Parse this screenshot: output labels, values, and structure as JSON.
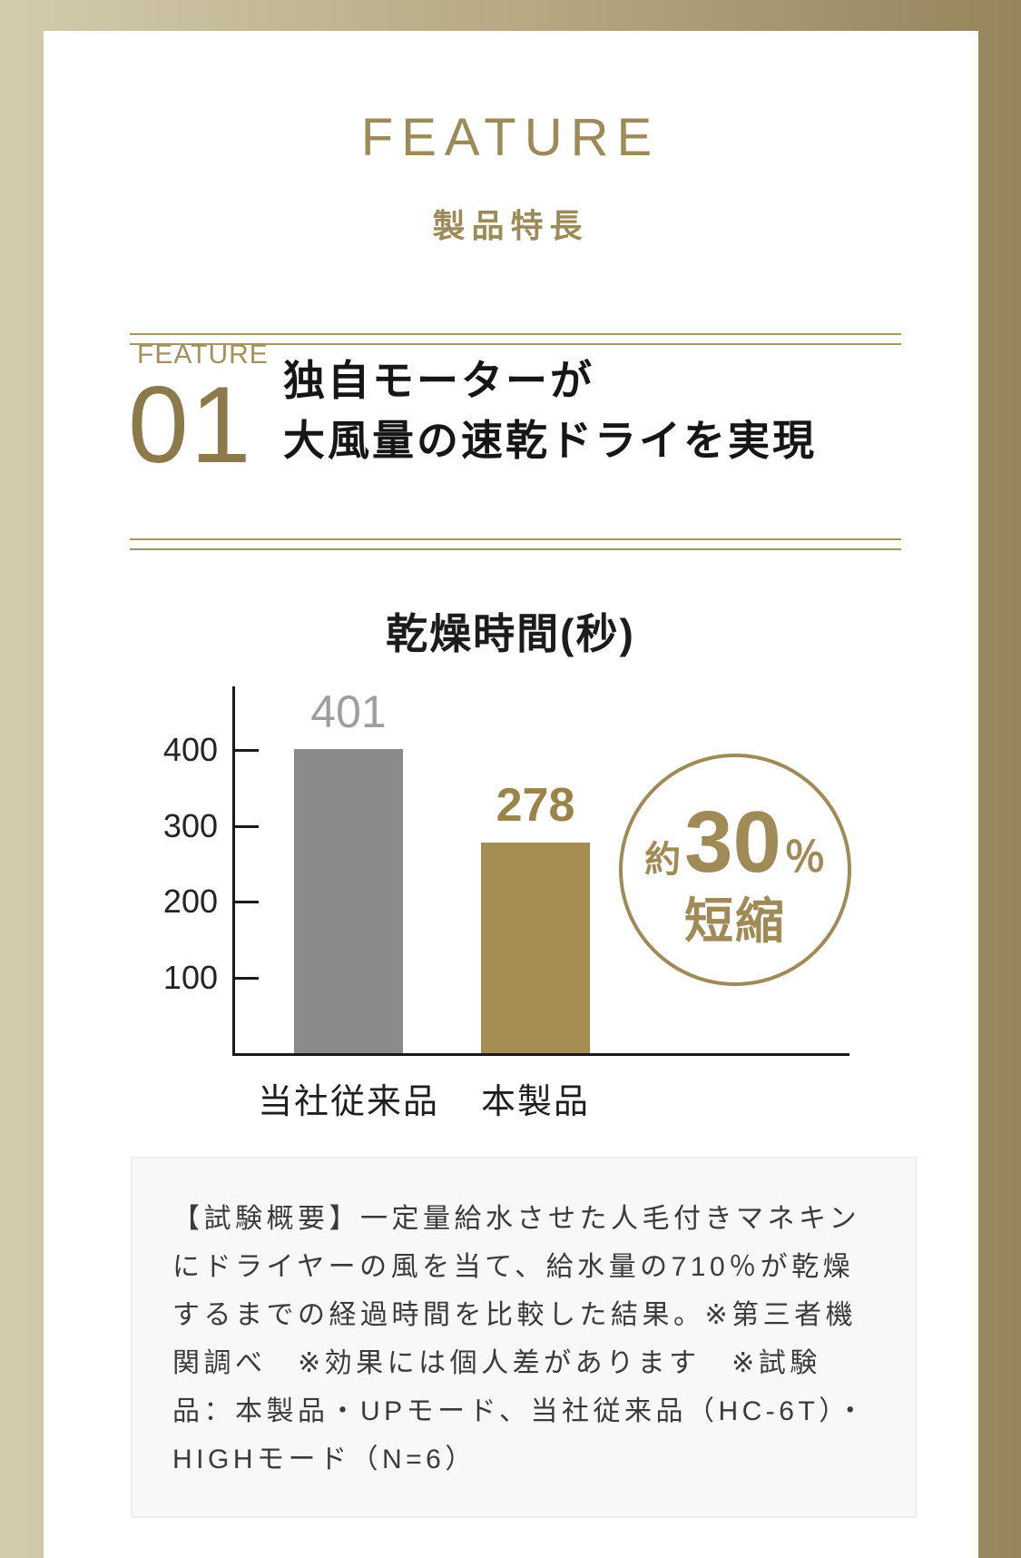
{
  "header": {
    "title": "FEATURE",
    "subtitle": "製品特長"
  },
  "feature": {
    "eyebrow": "FEATURE",
    "number": "01",
    "heading": [
      "独自モーターが",
      "大風量の速乾ドライを実現"
    ]
  },
  "chart_data": {
    "type": "bar",
    "title": "乾燥時間(秒)",
    "categories": [
      "当社従来品",
      "本製品"
    ],
    "values": [
      401,
      278
    ],
    "bar_colors": [
      "#8a8a8a",
      "#a58c52"
    ],
    "value_label_colors": [
      "#9e9e9e",
      "#9c8348"
    ],
    "yticks": [
      100,
      200,
      300,
      400
    ],
    "ylim": [
      0,
      440
    ],
    "xlabel": "",
    "ylabel": "",
    "grid": false,
    "legend": "none",
    "annotation": "約30％短縮"
  },
  "badge": {
    "prefix": "約",
    "value": "30",
    "unit": "％",
    "label": "短縮"
  },
  "note": {
    "text": "【試験概要】一定量給水させた人毛付きマネキンにドライヤーの風を当て、給水量の710％が乾燥するまでの経過時間を比較した結果。※第三者機関調べ　※効果には個人差があります　※試験品：本製品・UPモード、当社従来品（HC-6T）・HIGHモード（N=6）"
  },
  "colors": {
    "frame_light": "#d2cbad",
    "frame_dark": "#96845a",
    "gold_heading": "#9c8a57",
    "gold_number": "#8d7a4b",
    "gold_rule": "#a79660",
    "badge_gold": "#a08a56",
    "axis": "#1a1a1a",
    "note_bg": "#f8f8f8"
  }
}
